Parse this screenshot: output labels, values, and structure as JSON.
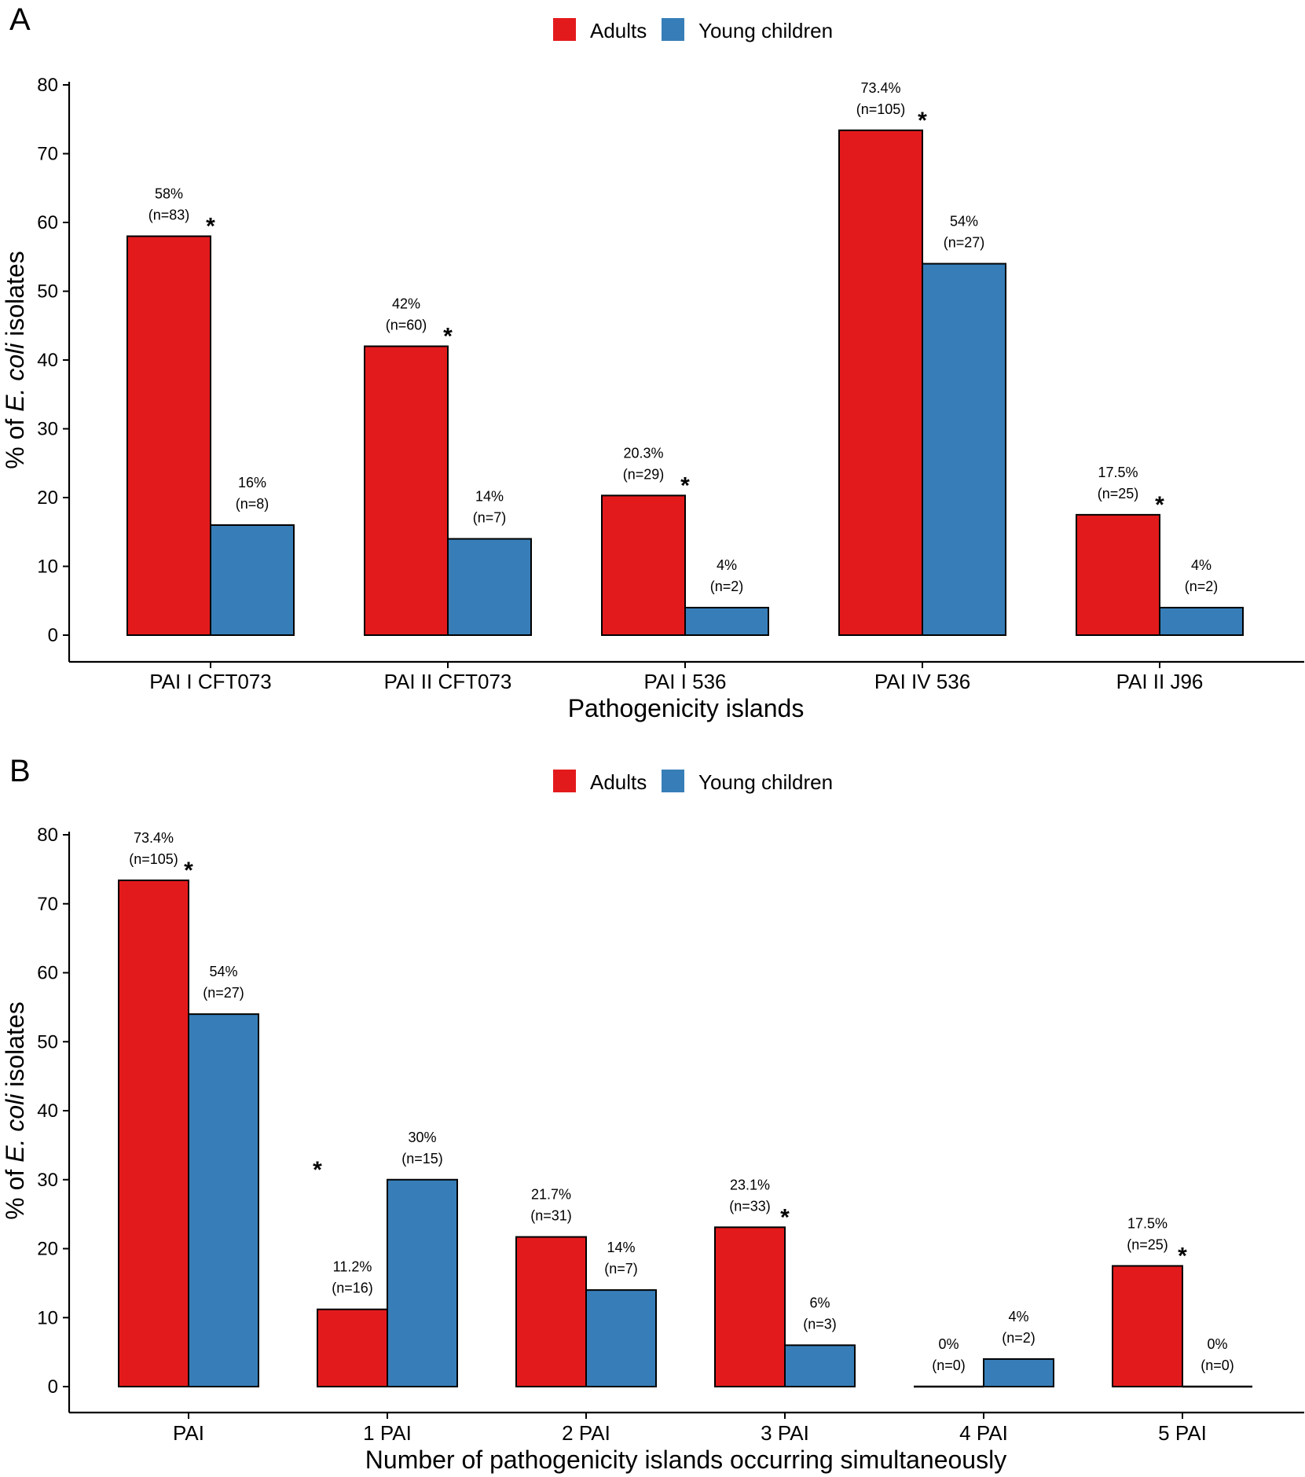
{
  "colors": {
    "adults": "#E31A1C",
    "young_children": "#377EB8",
    "axis": "#000000"
  },
  "chart_data": [
    {
      "panel": "A",
      "type": "bar",
      "legend": {
        "position": "top-center",
        "items": [
          "Adults",
          "Young children"
        ]
      },
      "xlabel": "Pathogenicity islands",
      "ylabel_prefix": "% of ",
      "ylabel_italic": "E. coli",
      "ylabel_suffix": " isolates",
      "ylim": [
        0,
        80
      ],
      "yticks": [
        0,
        10,
        20,
        30,
        40,
        50,
        60,
        70,
        80
      ],
      "categories": [
        "PAI I CFT073",
        "PAI II CFT073",
        "PAI I 536",
        "PAI IV 536",
        "PAI II J96"
      ],
      "series": [
        {
          "name": "Adults",
          "values": [
            58,
            42,
            20.3,
            73.4,
            17.5
          ],
          "pct_labels": [
            "58%",
            "42%",
            "20.3%",
            "73.4%",
            "17.5%"
          ],
          "n_labels": [
            "(n=83)",
            "(n=60)",
            "(n=29)",
            "(n=105)",
            "(n=25)"
          ]
        },
        {
          "name": "Young children",
          "values": [
            16,
            14,
            4,
            54,
            4
          ],
          "pct_labels": [
            "16%",
            "14%",
            "4%",
            "54%",
            "4%"
          ],
          "n_labels": [
            "(n=8)",
            "(n=7)",
            "(n=2)",
            "(n=27)",
            "(n=2)"
          ]
        }
      ],
      "significance": [
        {
          "category": 0,
          "series": 0,
          "mark": "*"
        },
        {
          "category": 1,
          "series": 0,
          "mark": "*"
        },
        {
          "category": 2,
          "series": 0,
          "mark": "*"
        },
        {
          "category": 3,
          "series": 0,
          "mark": "*"
        },
        {
          "category": 4,
          "series": 0,
          "mark": "*"
        }
      ]
    },
    {
      "panel": "B",
      "type": "bar",
      "legend": {
        "position": "top-center",
        "items": [
          "Adults",
          "Young children"
        ]
      },
      "xlabel": "Number of pathogenicity islands occurring simultaneously",
      "ylabel_prefix": "% of ",
      "ylabel_italic": "E. coli",
      "ylabel_suffix": " isolates",
      "ylim": [
        0,
        80
      ],
      "yticks": [
        0,
        10,
        20,
        30,
        40,
        50,
        60,
        70,
        80
      ],
      "categories": [
        "PAI",
        "1 PAI",
        "2 PAI",
        "3 PAI",
        "4 PAI",
        "5 PAI"
      ],
      "series": [
        {
          "name": "Adults",
          "values": [
            73.4,
            11.2,
            21.7,
            23.1,
            0,
            17.5
          ],
          "pct_labels": [
            "73.4%",
            "11.2%",
            "21.7%",
            "23.1%",
            "0%",
            "17.5%"
          ],
          "n_labels": [
            "(n=105)",
            "(n=16)",
            "(n=31)",
            "(n=33)",
            "(n=0)",
            "(n=25)"
          ]
        },
        {
          "name": "Young children",
          "values": [
            54,
            30,
            14,
            6,
            4,
            0
          ],
          "pct_labels": [
            "54%",
            "30%",
            "14%",
            "6%",
            "4%",
            "0%"
          ],
          "n_labels": [
            "(n=27)",
            "(n=15)",
            "(n=7)",
            "(n=3)",
            "(n=2)",
            "(n=0)"
          ]
        }
      ],
      "significance": [
        {
          "category": 0,
          "series": 0,
          "mark": "*"
        },
        {
          "category": 1,
          "series": 1,
          "mark": "*"
        },
        {
          "category": 3,
          "series": 0,
          "mark": "*"
        },
        {
          "category": 5,
          "series": 0,
          "mark": "*"
        }
      ]
    }
  ]
}
